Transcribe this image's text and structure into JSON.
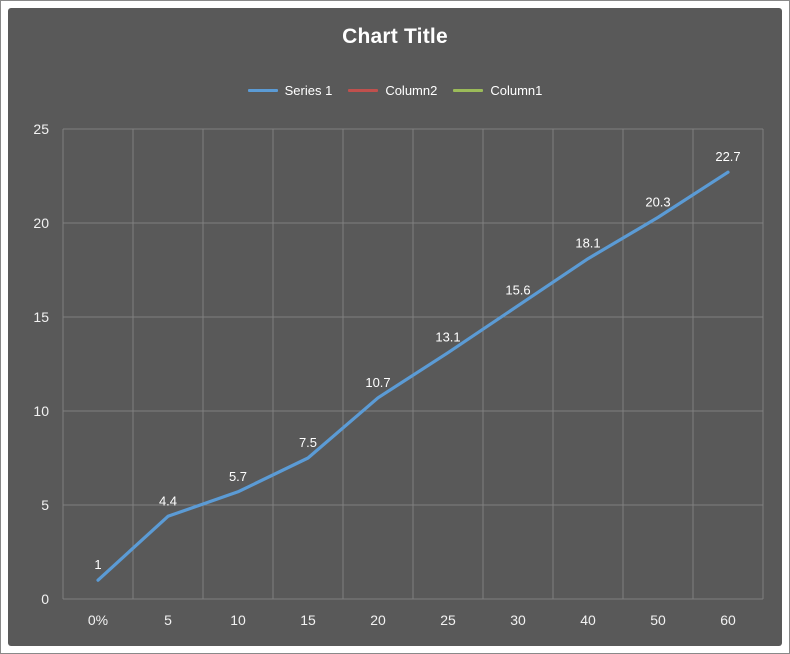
{
  "chart_data": {
    "type": "line",
    "title": "Chart Title",
    "categories": [
      "0%",
      "5",
      "10",
      "15",
      "20",
      "25",
      "30",
      "40",
      "50",
      "60"
    ],
    "series": [
      {
        "name": "Series 1",
        "color": "#5B9BD5",
        "values": [
          1,
          4.4,
          5.7,
          7.5,
          10.7,
          13.1,
          15.6,
          18.1,
          20.3,
          22.7
        ],
        "labels": [
          "1",
          "4.4",
          "5.7",
          "7.5",
          "10.7",
          "13.1",
          "15.6",
          "18.1",
          "20.3",
          "22.7"
        ],
        "data_labels": true
      },
      {
        "name": "Column2",
        "color": "#C0504D",
        "values": [],
        "labels": [],
        "data_labels": false
      },
      {
        "name": "Column1",
        "color": "#9BBB59",
        "values": [],
        "labels": [],
        "data_labels": false
      }
    ],
    "ylim": [
      0,
      25
    ],
    "ytick_step": 5,
    "yticks": [
      "0",
      "5",
      "10",
      "15",
      "20",
      "25"
    ],
    "grid": true,
    "legend_position": "top",
    "colors": {
      "background": "#595959",
      "gridline": "#7F7F7F",
      "text": "#FFFFFF",
      "page": "#FFFFFF",
      "frame_border": "#898989"
    }
  }
}
